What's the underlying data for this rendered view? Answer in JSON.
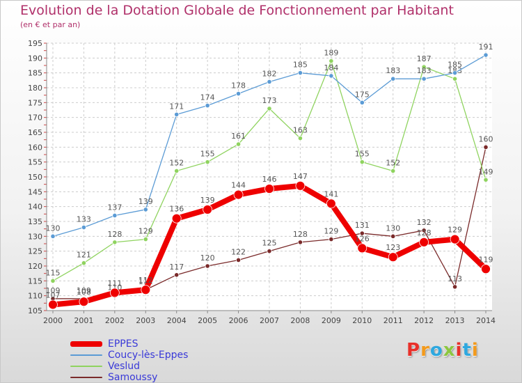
{
  "header": {
    "title": "Evolution de la Dotation Globale de Fonctionnement par Habitant",
    "subtitle": "(en € et par an)"
  },
  "brand": {
    "letters": [
      "P",
      "r",
      "o",
      "x",
      "i",
      "t",
      "i"
    ],
    "colors": [
      "#e8302a",
      "#f39a1c",
      "#2ea8df",
      "#8cc63f",
      "#e8302a",
      "#2ea8df",
      "#f39a1c"
    ]
  },
  "chart_data": {
    "type": "line",
    "title": "Evolution de la Dotation Globale de Fonctionnement par Habitant",
    "subtitle": "(en € et par an)",
    "xlabel": "",
    "ylabel": "",
    "categories": [
      "2000",
      "2001",
      "2002",
      "2003",
      "2004",
      "2005",
      "2006",
      "2007",
      "2008",
      "2009",
      "2010",
      "2011",
      "2012",
      "2013",
      "2014"
    ],
    "ylim": [
      105,
      195
    ],
    "yticks": [
      105,
      110,
      115,
      120,
      125,
      130,
      135,
      140,
      145,
      150,
      155,
      160,
      165,
      170,
      175,
      180,
      185,
      190,
      195
    ],
    "grid": true,
    "legend_position": "bottom-left",
    "series": [
      {
        "name": "EPPES",
        "color": "#ee0000",
        "values": [
          107,
          108,
          111,
          112,
          136,
          139,
          144,
          146,
          147,
          141,
          126,
          123,
          128,
          129,
          119
        ]
      },
      {
        "name": "Coucy-lès-Eppes",
        "color": "#5b9bd5",
        "values": [
          130,
          133,
          137,
          139,
          171,
          174,
          178,
          182,
          185,
          184,
          175,
          183,
          183,
          185,
          191
        ]
      },
      {
        "name": "Veslud",
        "color": "#8fd35f",
        "values": [
          115,
          121,
          128,
          129,
          152,
          155,
          161,
          173,
          163,
          189,
          155,
          152,
          187,
          183,
          149
        ]
      },
      {
        "name": "Samoussy",
        "color": "#7a2a2a",
        "values": [
          109,
          109,
          110,
          112,
          117,
          120,
          122,
          125,
          128,
          129,
          131,
          130,
          132,
          113,
          160
        ]
      }
    ]
  }
}
